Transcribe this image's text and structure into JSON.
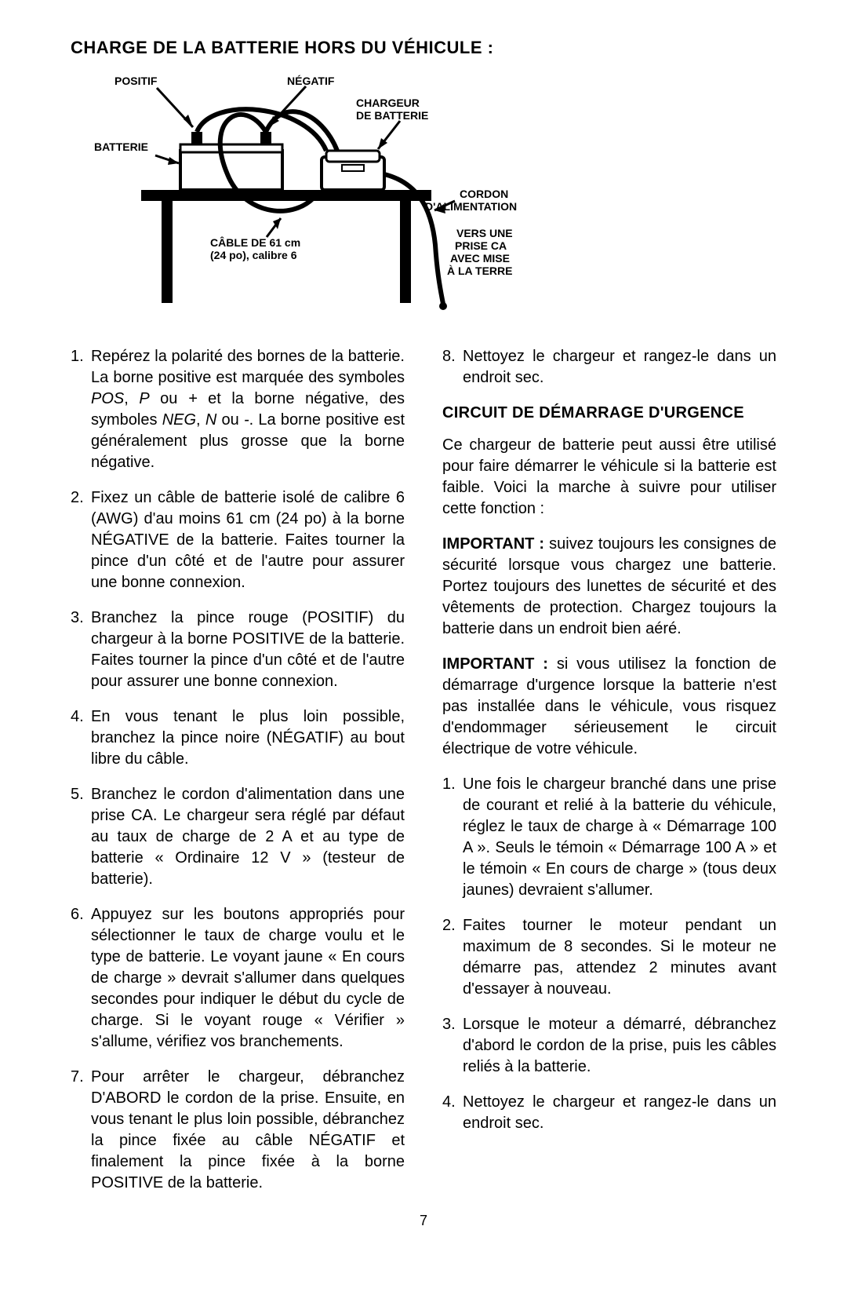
{
  "title": "CHARGE DE LA BATTERIE HORS DU VÉHICULE :",
  "diagram": {
    "labels": {
      "positif": "POSITIF",
      "negatif": "NÉGATIF",
      "chargeur1": "CHARGEUR",
      "chargeur2": "DE BATTERIE",
      "batterie": "BATTERIE",
      "cable1": "CÂBLE DE 61 cm",
      "cable2": "(24 po), calibre 6",
      "cordon1": "CORDON",
      "cordon2": "D'ALIMENTATION",
      "vers1": "VERS UNE",
      "vers2": "PRISE CA",
      "vers3": "AVEC MISE",
      "vers4": "À LA TERRE"
    },
    "colors": {
      "stroke": "#000000",
      "fill_black": "#000000",
      "fill_white": "#ffffff"
    }
  },
  "left": {
    "items": [
      "Repérez la polarité des bornes de la batterie. La borne positive est marquée des symboles <span class=\"italic\">POS</span>, <span class=\"italic\">P</span> ou <span class=\"italic\">+</span> et la borne négative, des symboles <span class=\"italic\">NEG</span>, <span class=\"italic\">N</span> ou <span class=\"italic\">-</span>. La borne positive est généralement plus grosse que la borne négative.",
      "Fixez un câble de batterie isolé de calibre 6 (AWG) d'au moins 61 cm (24 po) à la borne NÉGATIVE de la batterie. Faites tourner la pince d'un côté et de l'autre pour assurer une bonne connexion.",
      "Branchez la pince rouge (POSITIF) du chargeur à la borne POSITIVE de la batterie. Faites tourner la pince d'un côté et de l'autre pour assurer une bonne connexion.",
      "En vous tenant le plus loin possible, branchez la pince noire (NÉGATIF) au bout libre du câble.",
      "Branchez le cordon d'alimentation dans une prise CA. Le chargeur sera réglé par défaut au taux de charge de 2 A et au type de batterie « Ordinaire 12 V » (testeur de batterie).",
      "Appuyez sur les boutons appropriés pour sélectionner le taux de charge voulu et le type de batterie. Le voyant jaune « En cours de charge » devrait s'allumer dans quelques secondes pour indiquer le début du cycle de charge. Si le voyant rouge « Vérifier » s'allume, vérifiez vos branchements.",
      "Pour arrêter le chargeur, débranchez D'ABORD le cordon de la prise. Ensuite, en vous tenant le plus loin possible, débranchez la pince fixée au câble NÉGATIF et finalement la pince fixée à la borne POSITIVE de la batterie."
    ]
  },
  "right": {
    "item8": "Nettoyez le chargeur et rangez-le dans un endroit sec.",
    "subhead": "CIRCUIT DE DÉMARRAGE D'URGENCE",
    "intro": "Ce chargeur de batterie peut aussi être utilisé pour faire démarrer le véhicule si la batterie est faible. Voici la marche à suivre pour utiliser cette fonction :",
    "imp1_label": "IMPORTANT :",
    "imp1": " suivez toujours les consignes de sécurité lorsque vous chargez une batterie. Portez toujours des lunettes de sécurité et des vêtements de protection. Chargez toujours la batterie dans un endroit bien aéré.",
    "imp2_label": "IMPORTANT :",
    "imp2": " si vous utilisez la fonction de démarrage d'urgence lorsque la batterie n'est pas installée dans le véhicule, vous risquez d'endommager sérieusement le circuit électrique de votre véhicule.",
    "items": [
      "Une fois le chargeur branché dans une prise de courant et relié à la batterie du véhicule, réglez le taux de charge à « Démarrage 100 A ». Seuls le témoin « Démarrage 100 A » et le témoin « En cours de charge » (tous deux jaunes) devraient s'allumer.",
      "Faites tourner le moteur pendant un maximum de 8 secondes. Si le moteur ne démarre pas, attendez 2 minutes avant d'essayer à nouveau.",
      "Lorsque le moteur a démarré, débranchez d'abord le cordon de la prise, puis les câbles reliés à la batterie.",
      "Nettoyez le chargeur et rangez-le dans un endroit sec."
    ]
  },
  "pagenum": "7"
}
